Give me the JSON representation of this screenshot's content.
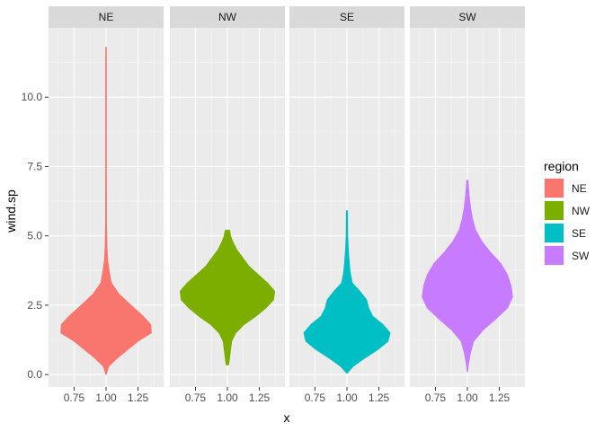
{
  "chart_data": {
    "type": "violin",
    "facet_variable": "region",
    "panels": [
      "NE",
      "NW",
      "SE",
      "SW"
    ],
    "xlabel": "x",
    "ylabel": "wind.sp",
    "x_ticks": [
      "0.75",
      "1.00",
      "1.25"
    ],
    "x_tick_values": [
      0.75,
      1.0,
      1.25
    ],
    "xlim": [
      0.55,
      1.45
    ],
    "y_ticks": [
      "0.0",
      "2.5",
      "5.0",
      "7.5",
      "10.0"
    ],
    "y_tick_values": [
      0,
      2.5,
      5,
      7.5,
      10
    ],
    "ylim": [
      -0.45,
      12.5
    ],
    "grid": true,
    "legend": {
      "title": "region",
      "position": "right",
      "entries": [
        "NE",
        "NW",
        "SE",
        "SW"
      ]
    },
    "series": [
      {
        "name": "NE",
        "color": "#F8766D",
        "profile": [
          [
            0.0,
            0.0
          ],
          [
            0.3,
            0.05
          ],
          [
            0.6,
            0.22
          ],
          [
            0.9,
            0.42
          ],
          [
            1.2,
            0.62
          ],
          [
            1.5,
            0.88
          ],
          [
            1.8,
            0.87
          ],
          [
            2.1,
            0.72
          ],
          [
            2.5,
            0.48
          ],
          [
            2.9,
            0.25
          ],
          [
            3.3,
            0.1
          ],
          [
            3.7,
            0.06
          ],
          [
            4.1,
            0.03
          ],
          [
            4.6,
            0.015
          ],
          [
            5.5,
            0.006
          ],
          [
            8.0,
            0.004
          ],
          [
            11.0,
            0.004
          ],
          [
            11.8,
            0.003
          ]
        ]
      },
      {
        "name": "NW",
        "color": "#7CAE00",
        "profile": [
          [
            0.35,
            0.02
          ],
          [
            0.6,
            0.04
          ],
          [
            0.9,
            0.06
          ],
          [
            1.2,
            0.08
          ],
          [
            1.5,
            0.16
          ],
          [
            1.8,
            0.32
          ],
          [
            2.1,
            0.55
          ],
          [
            2.4,
            0.75
          ],
          [
            2.7,
            0.9
          ],
          [
            3.0,
            0.92
          ],
          [
            3.3,
            0.78
          ],
          [
            3.6,
            0.6
          ],
          [
            3.9,
            0.42
          ],
          [
            4.2,
            0.3
          ],
          [
            4.5,
            0.18
          ],
          [
            4.8,
            0.1
          ],
          [
            5.0,
            0.06
          ],
          [
            5.2,
            0.04
          ]
        ]
      },
      {
        "name": "SE",
        "color": "#00BFC4",
        "profile": [
          [
            0.05,
            0.0
          ],
          [
            0.3,
            0.12
          ],
          [
            0.6,
            0.35
          ],
          [
            0.9,
            0.6
          ],
          [
            1.2,
            0.8
          ],
          [
            1.5,
            0.84
          ],
          [
            1.8,
            0.7
          ],
          [
            2.1,
            0.5
          ],
          [
            2.4,
            0.42
          ],
          [
            2.7,
            0.38
          ],
          [
            3.0,
            0.25
          ],
          [
            3.3,
            0.1
          ],
          [
            3.7,
            0.06
          ],
          [
            4.1,
            0.04
          ],
          [
            4.5,
            0.025
          ],
          [
            5.0,
            0.012
          ],
          [
            5.9,
            0.008
          ]
        ]
      },
      {
        "name": "SW",
        "color": "#C77CFF",
        "profile": [
          [
            0.1,
            0.0
          ],
          [
            0.4,
            0.02
          ],
          [
            0.8,
            0.06
          ],
          [
            1.2,
            0.12
          ],
          [
            1.6,
            0.3
          ],
          [
            2.0,
            0.55
          ],
          [
            2.4,
            0.78
          ],
          [
            2.8,
            0.88
          ],
          [
            3.2,
            0.85
          ],
          [
            3.6,
            0.78
          ],
          [
            4.0,
            0.65
          ],
          [
            4.4,
            0.45
          ],
          [
            4.8,
            0.28
          ],
          [
            5.2,
            0.16
          ],
          [
            5.6,
            0.1
          ],
          [
            6.0,
            0.06
          ],
          [
            6.5,
            0.03
          ],
          [
            7.0,
            0.01
          ]
        ]
      }
    ]
  }
}
